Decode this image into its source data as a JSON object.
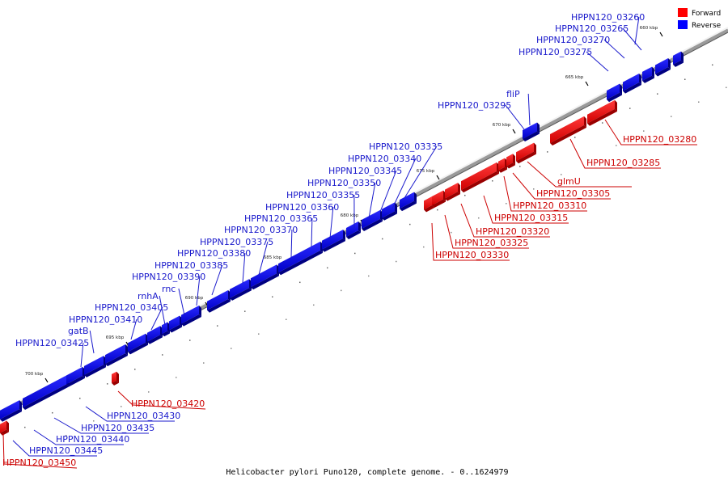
{
  "caption": "Helicobacter pylori Puno120, complete genome. - 0..1624979",
  "colors": {
    "forward": "#ff0000",
    "reverse": "#0000ff",
    "forward_label": "#cc0000",
    "reverse_label": "#1a1acc"
  },
  "legend": [
    {
      "name": "Forward",
      "color": "#ff0000"
    },
    {
      "name": "Reverse",
      "color": "#0000ff"
    }
  ],
  "ticks": [
    "660 kbp",
    "665 kbp",
    "670 kbp",
    "675 kbp",
    "680 kbp",
    "685 kbp",
    "690 kbp",
    "695 kbp",
    "700 kbp"
  ],
  "genes": [
    {
      "label": "HPPN120_03260",
      "strand": "reverse"
    },
    {
      "label": "HPPN120_03265",
      "strand": "reverse"
    },
    {
      "label": "HPPN120_03270",
      "strand": "reverse"
    },
    {
      "label": "HPPN120_03275",
      "strand": "reverse"
    },
    {
      "label": "fliP",
      "strand": "reverse"
    },
    {
      "label": "HPPN120_03295",
      "strand": "reverse"
    },
    {
      "label": "HPPN120_03280",
      "strand": "forward"
    },
    {
      "label": "HPPN120_03285",
      "strand": "forward"
    },
    {
      "label": "glmU",
      "strand": "forward"
    },
    {
      "label": "HPPN120_03305",
      "strand": "forward"
    },
    {
      "label": "HPPN120_03310",
      "strand": "forward"
    },
    {
      "label": "HPPN120_03315",
      "strand": "forward"
    },
    {
      "label": "HPPN120_03320",
      "strand": "forward"
    },
    {
      "label": "HPPN120_03325",
      "strand": "forward"
    },
    {
      "label": "HPPN120_03330",
      "strand": "forward"
    },
    {
      "label": "HPPN120_03335",
      "strand": "reverse"
    },
    {
      "label": "HPPN120_03340",
      "strand": "reverse"
    },
    {
      "label": "HPPN120_03345",
      "strand": "reverse"
    },
    {
      "label": "HPPN120_03350",
      "strand": "reverse"
    },
    {
      "label": "HPPN120_03355",
      "strand": "reverse"
    },
    {
      "label": "HPPN120_03360",
      "strand": "reverse"
    },
    {
      "label": "HPPN120_03365",
      "strand": "reverse"
    },
    {
      "label": "HPPN120_03370",
      "strand": "reverse"
    },
    {
      "label": "HPPN120_03375",
      "strand": "reverse"
    },
    {
      "label": "HPPN120_03380",
      "strand": "reverse"
    },
    {
      "label": "HPPN120_03385",
      "strand": "reverse"
    },
    {
      "label": "HPPN120_03390",
      "strand": "reverse"
    },
    {
      "label": "rnc",
      "strand": "reverse"
    },
    {
      "label": "rnhA",
      "strand": "reverse"
    },
    {
      "label": "HPPN120_03405",
      "strand": "reverse"
    },
    {
      "label": "HPPN120_03410",
      "strand": "reverse"
    },
    {
      "label": "gatB",
      "strand": "reverse"
    },
    {
      "label": "HPPN120_03425",
      "strand": "reverse"
    },
    {
      "label": "HPPN120_03420",
      "strand": "forward"
    },
    {
      "label": "HPPN120_03430",
      "strand": "reverse"
    },
    {
      "label": "HPPN120_03435",
      "strand": "reverse"
    },
    {
      "label": "HPPN120_03440",
      "strand": "reverse"
    },
    {
      "label": "HPPN120_03445",
      "strand": "reverse"
    },
    {
      "label": "HPPN120_03450",
      "strand": "forward"
    }
  ]
}
